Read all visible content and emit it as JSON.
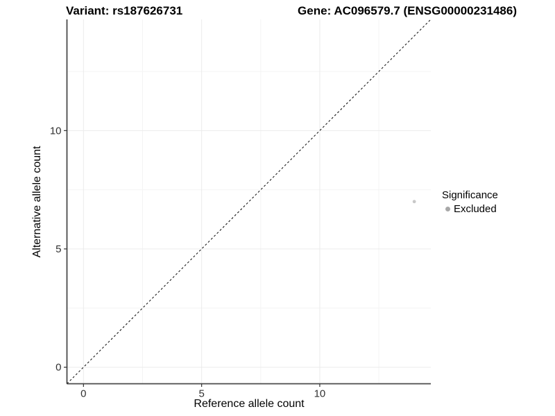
{
  "chart_data": {
    "type": "scatter",
    "title_left": "Variant: rs187626731",
    "title_right": "Gene: AC096579.7 (ENSG00000231486)",
    "xlabel": "Reference allele count",
    "ylabel": "Alternative allele count",
    "xlim": [
      -0.7,
      14.7
    ],
    "ylim": [
      -0.7,
      14.7
    ],
    "xticks": [
      0,
      5,
      10
    ],
    "yticks": [
      0,
      5,
      10
    ],
    "xticks_minor": [
      2.5,
      7.5,
      12.5
    ],
    "yticks_minor": [
      2.5,
      7.5,
      12.5
    ],
    "grid": true,
    "legend_position": "right",
    "points": [
      {
        "x": 14,
        "y": 7,
        "significance": "Excluded"
      }
    ],
    "abline": {
      "slope": 1,
      "intercept": 0,
      "style": "dashed"
    },
    "legend": {
      "title": "Significance",
      "items": [
        {
          "label": "Excluded"
        }
      ]
    },
    "colors": {
      "point": "#c8c8c8",
      "legend_dot": "#a8a8a8",
      "abline": "#1a1a1a",
      "grid_major": "#ebebeb",
      "grid_minor": "#f4f4f4",
      "axis_line": "#4a4a4a",
      "tick": "#333333",
      "tick_label": "#303030",
      "background": "#ffffff"
    }
  }
}
